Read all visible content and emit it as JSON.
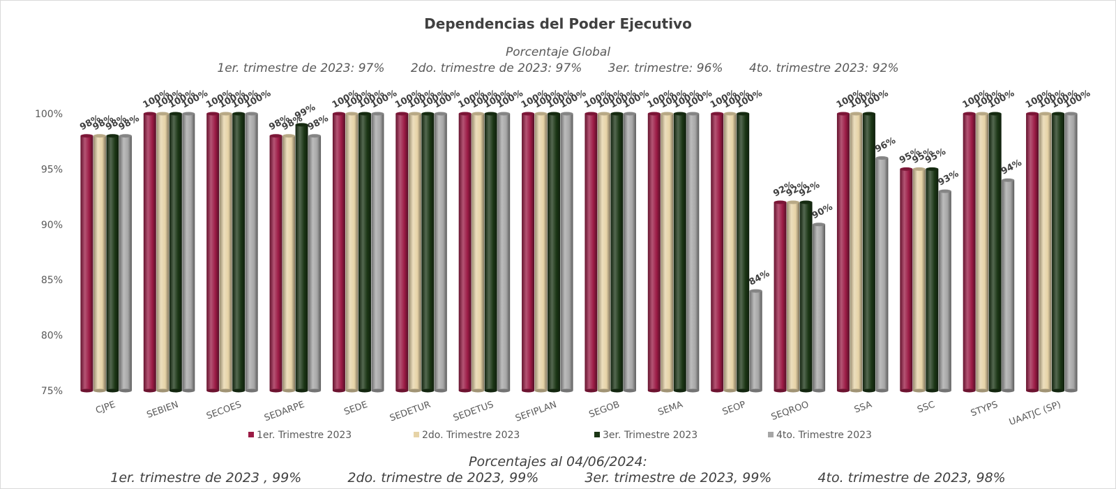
{
  "header": {
    "title": "Dependencias del Poder Ejecutivo",
    "subtitle": "Porcentaje Global",
    "quarter_notes": [
      "1er. trimestre de 2023: 97%",
      "2do. trimestre de 2023: 97%",
      "3er. trimestre: 96%",
      "4to. trimestre 2023: 92%"
    ]
  },
  "footer": {
    "title": "Porcentajes al 04/06/2024:",
    "items": [
      "1er. trimestre de 2023 , 99%",
      "2do. trimestre de 2023, 99%",
      "3er. trimestre de 2023, 99%",
      "4to. trimestre de 2023, 98%"
    ]
  },
  "colors": {
    "q1": "#9b1b45",
    "q2": "#e6d3a7",
    "q3": "#1b3615",
    "q4": "#a6a6a6"
  },
  "chart_data": {
    "type": "bar",
    "categories": [
      "CJPE",
      "SEBIEN",
      "SECOES",
      "SEDARPE",
      "SEDE",
      "SEDETUR",
      "SEDETUS",
      "SEFIPLAN",
      "SEGOB",
      "SEMA",
      "SEOP",
      "SEQROO",
      "SSA",
      "SSC",
      "STYPS",
      "UAATJC (SP)"
    ],
    "series": [
      {
        "name": "1er. Trimestre 2023",
        "color": "#9b1b45",
        "values": [
          98,
          100,
          100,
          98,
          100,
          100,
          100,
          100,
          100,
          100,
          100,
          92,
          100,
          95,
          100,
          100
        ]
      },
      {
        "name": "2do. Trimestre 2023",
        "color": "#e6d3a7",
        "values": [
          98,
          100,
          100,
          98,
          100,
          100,
          100,
          100,
          100,
          100,
          100,
          92,
          100,
          95,
          100,
          100
        ]
      },
      {
        "name": "3er. Trimestre 2023",
        "color": "#1b3615",
        "values": [
          98,
          100,
          100,
          99,
          100,
          100,
          100,
          100,
          100,
          100,
          100,
          92,
          100,
          95,
          100,
          100
        ]
      },
      {
        "name": "4to. Trimestre 2023",
        "color": "#a6a6a6",
        "values": [
          98,
          100,
          100,
          98,
          100,
          100,
          100,
          100,
          100,
          100,
          84,
          90,
          96,
          93,
          94,
          100
        ]
      }
    ],
    "y_ticks": [
      "75%",
      "80%",
      "85%",
      "90%",
      "95%",
      "100%"
    ],
    "ylim": [
      75,
      100
    ],
    "value_suffix": "%",
    "legend_position": "bottom",
    "grid": false
  }
}
